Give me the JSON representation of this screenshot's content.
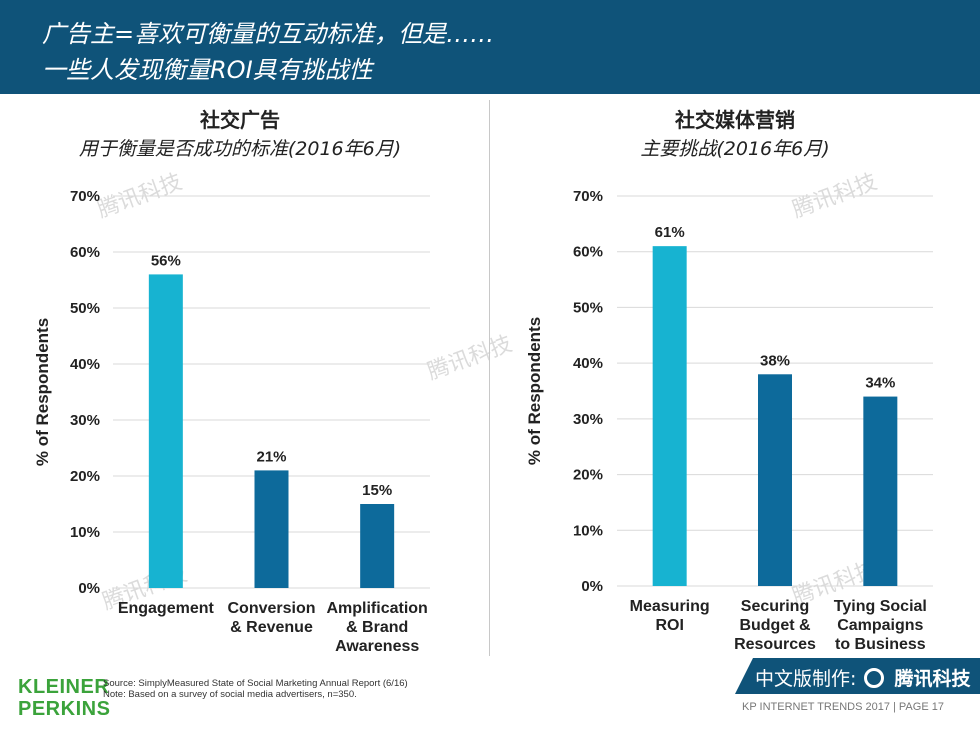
{
  "header": {
    "line1": "广告主=喜欢可衡量的互动标准，但是……",
    "line2": "一些人发现衡量ROI具有挑战性"
  },
  "left_panel": {
    "title": "社交广告",
    "subtitle": "用于衡量是否成功的标准(2016年6月)"
  },
  "right_panel": {
    "title": "社交媒体营销",
    "subtitle": "主要挑战(2016年6月)"
  },
  "chart_data": [
    {
      "type": "bar",
      "title": "社交广告",
      "subtitle": "用于衡量是否成功的标准(2016年6月)",
      "categories": [
        [
          "Engagement"
        ],
        [
          "Conversion",
          "& Revenue"
        ],
        [
          "Amplification",
          "& Brand",
          "Awareness"
        ]
      ],
      "values": [
        56,
        21,
        15
      ],
      "value_labels": [
        "56%",
        "21%",
        "15%"
      ],
      "bar_colors": [
        "#17b3d1",
        "#0d6a9b",
        "#0d6a9b"
      ],
      "ylabel": "% of Respondents",
      "xlabel": "",
      "ylim": [
        0,
        70
      ],
      "yticks": [
        "0%",
        "10%",
        "20%",
        "30%",
        "40%",
        "50%",
        "60%",
        "70%"
      ],
      "grid": true
    },
    {
      "type": "bar",
      "title": "社交媒体营销",
      "subtitle": "主要挑战(2016年6月)",
      "categories": [
        [
          "Measuring",
          "ROI"
        ],
        [
          "Securing",
          "Budget &",
          "Resources"
        ],
        [
          "Tying Social",
          "Campaigns",
          "to Business"
        ]
      ],
      "values": [
        61,
        38,
        34
      ],
      "value_labels": [
        "61%",
        "38%",
        "34%"
      ],
      "bar_colors": [
        "#17b3d1",
        "#0d6a9b",
        "#0d6a9b"
      ],
      "ylabel": "% of Respondents",
      "xlabel": "",
      "ylim": [
        0,
        70
      ],
      "yticks": [
        "0%",
        "10%",
        "20%",
        "30%",
        "40%",
        "50%",
        "60%",
        "70%"
      ],
      "grid": true
    }
  ],
  "footer": {
    "logo_line1": "KLEINER",
    "logo_line2": "PERKINS",
    "source_line1": "Source: SimplyMeasured State of Social Marketing Annual Report (6/16)",
    "source_line2": "Note: Based on a survey of social media advertisers, n=350.",
    "band_label": "中文版制作:",
    "band_brand": "腾讯科技",
    "kp_text": "KP INTERNET TRENDS 2017  |  PAGE 17"
  },
  "watermark": "腾讯科技"
}
